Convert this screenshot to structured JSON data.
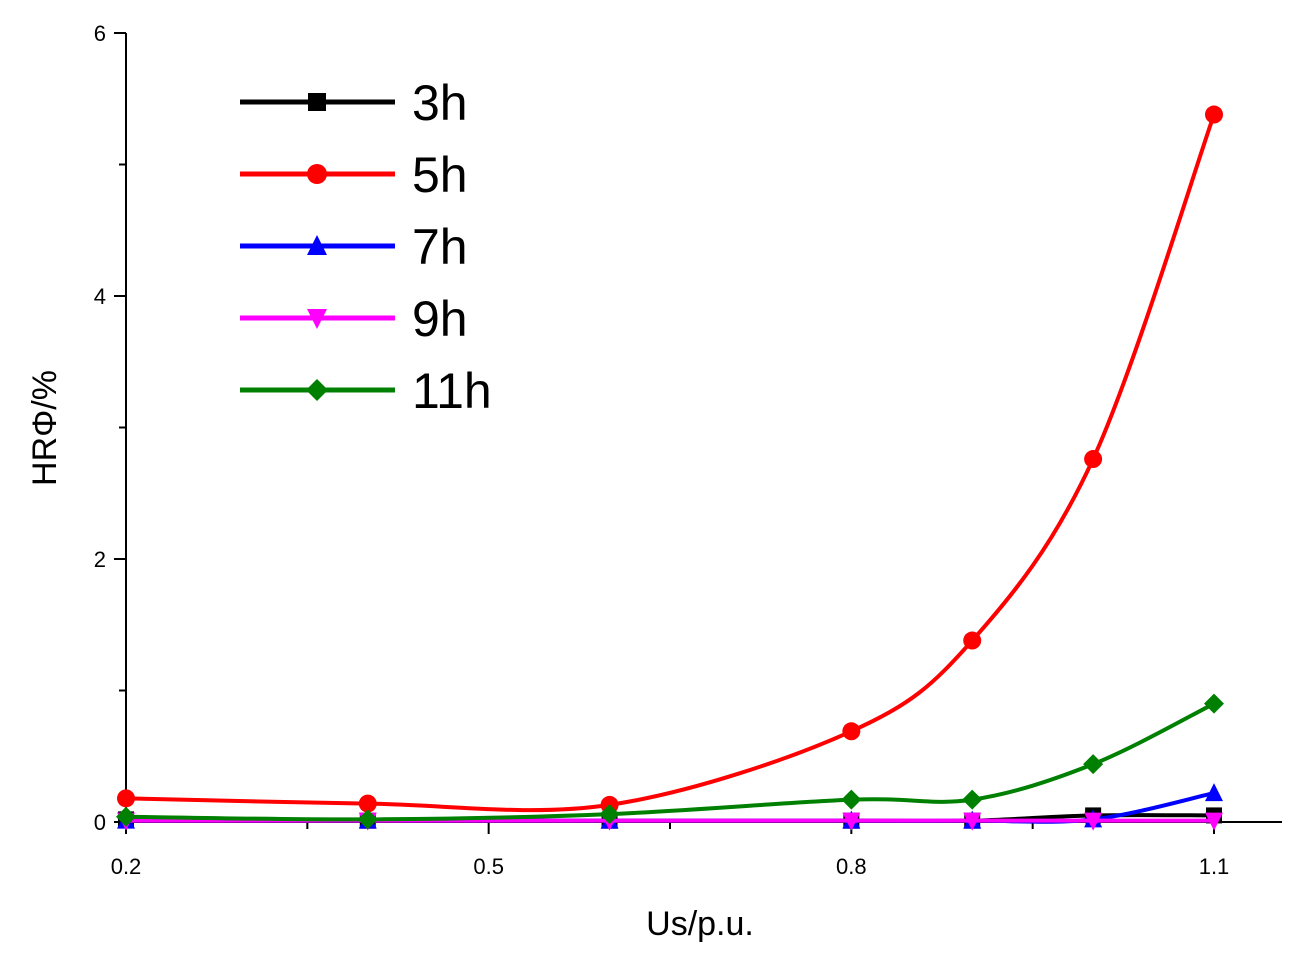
{
  "chart_data": {
    "type": "line",
    "title": "",
    "xlabel": "Us/p.u.",
    "ylabel": "HRΦ/%",
    "xlim": [
      0.2,
      1.25
    ],
    "ylim": [
      0,
      6
    ],
    "x_ticks": [
      0.2,
      0.5,
      0.8,
      1.1
    ],
    "x_tick_labels": [
      "0.2",
      "0.5",
      "0.8",
      "1.1"
    ],
    "x_minor_ticks": [
      0.35,
      0.65,
      0.95
    ],
    "y_ticks": [
      0,
      2,
      4,
      6
    ],
    "y_tick_labels": [
      "0",
      "2",
      "4",
      "6"
    ],
    "y_minor_ticks": [
      1,
      3,
      5
    ],
    "grid": false,
    "legend_position": "top-left",
    "x": [
      0.2,
      0.4,
      0.6,
      0.8,
      0.9,
      1.0,
      1.1
    ],
    "series": [
      {
        "name": "3h",
        "color": "#000000",
        "marker": "square",
        "values": [
          0.02,
          0.01,
          0.01,
          0.01,
          0.01,
          0.05,
          0.05
        ]
      },
      {
        "name": "5h",
        "color": "#ff0000",
        "marker": "circle",
        "values": [
          0.18,
          0.14,
          0.13,
          0.69,
          1.38,
          2.76,
          5.38
        ]
      },
      {
        "name": "7h",
        "color": "#0000ff",
        "marker": "triangle-up",
        "values": [
          0.01,
          0.01,
          0.01,
          0.01,
          0.01,
          0.02,
          0.22
        ]
      },
      {
        "name": "9h",
        "color": "#ff00ff",
        "marker": "triangle-down",
        "values": [
          0.01,
          0.01,
          0.01,
          0.01,
          0.01,
          0.01,
          0.01
        ]
      },
      {
        "name": "11h",
        "color": "#008000",
        "marker": "diamond",
        "values": [
          0.04,
          0.02,
          0.06,
          0.17,
          0.17,
          0.44,
          0.9
        ]
      }
    ]
  }
}
